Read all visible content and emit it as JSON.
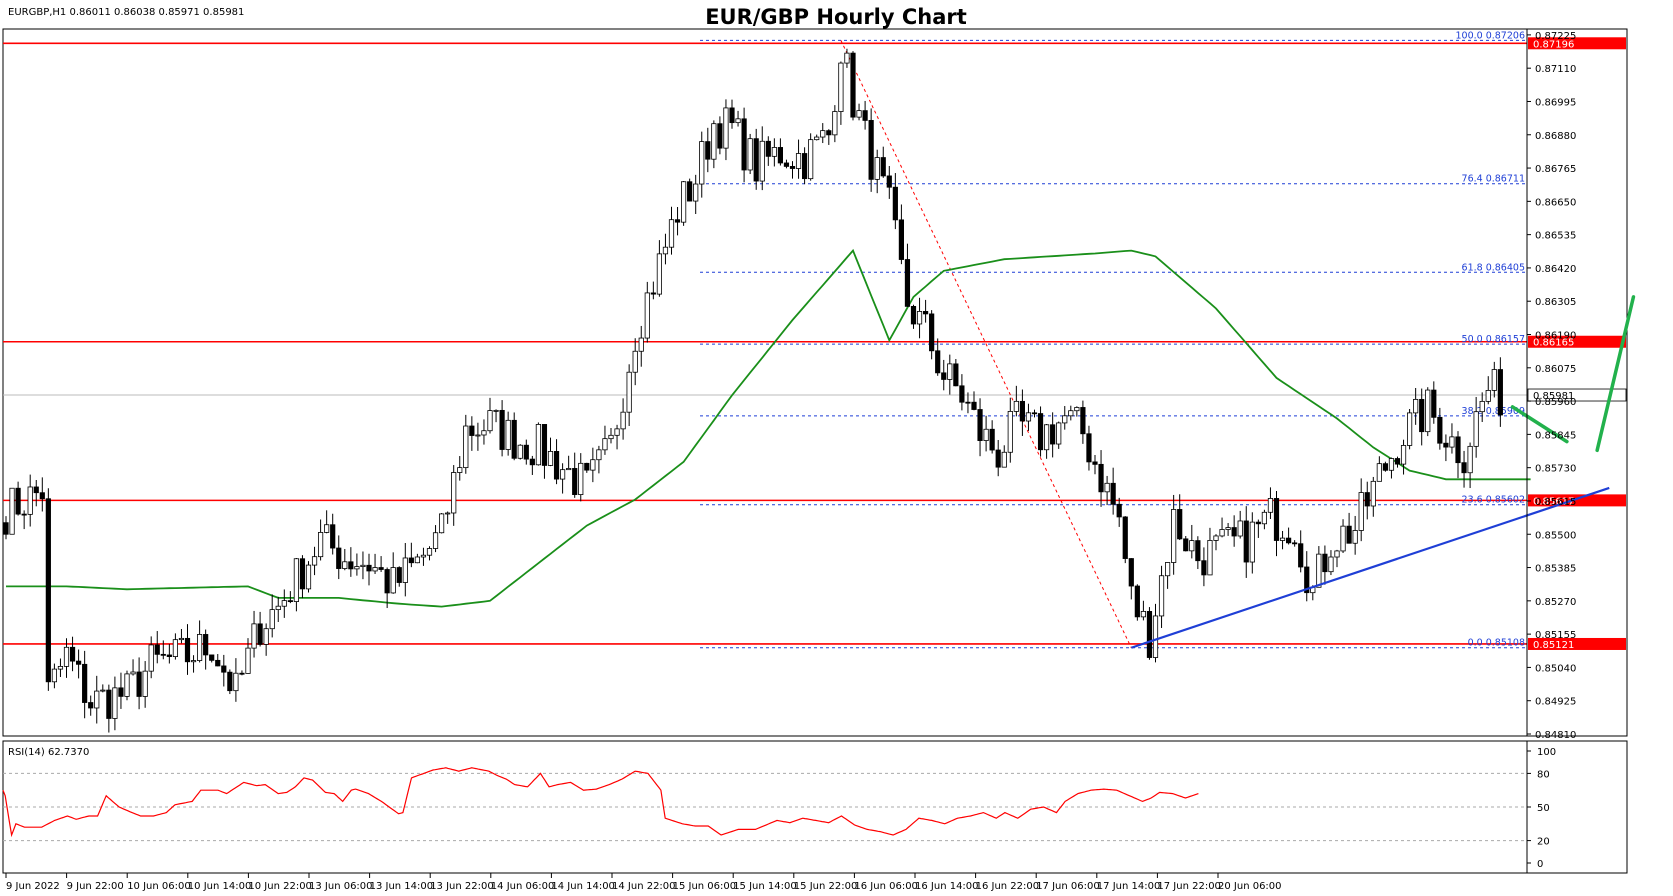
{
  "header": {
    "symbol_info": "EURGBP,H1  0.86011 0.86038 0.85971 0.85981",
    "title": "EUR/GBP Hourly Chart",
    "rsi_label": "RSI(14) 62.7370"
  },
  "colors": {
    "bull_candle": "#ffffff",
    "bear_candle": "#000000",
    "level_line": "#ff0000",
    "moving_average": "#1a8f1a",
    "trendline": "#1f3fd6",
    "fib_line": "#1f3fd6",
    "projection_arrow": "#22b14c",
    "rsi_line": "#ff0000"
  },
  "chart_data": [
    {
      "type": "candlestick",
      "symbol": "EURGBP",
      "timeframe": "H1",
      "ylim": [
        0.8481,
        0.87235
      ],
      "y_ticks": [
        "0.87225",
        "0.87110",
        "0.86995",
        "0.86880",
        "0.86765",
        "0.86650",
        "0.86535",
        "0.86420",
        "0.86305",
        "0.86190",
        "0.86075",
        "0.85960",
        "0.85845",
        "0.85730",
        "0.85615",
        "0.85500",
        "0.85385",
        "0.85270",
        "0.85155",
        "0.85040",
        "0.84925",
        "0.84810"
      ],
      "x_ticks": [
        "9 Jun 2022",
        "9 Jun 22:00",
        "10 Jun 06:00",
        "10 Jun 14:00",
        "10 Jun 22:00",
        "13 Jun 06:00",
        "13 Jun 14:00",
        "13 Jun 22:00",
        "14 Jun 06:00",
        "14 Jun 14:00",
        "14 Jun 22:00",
        "15 Jun 06:00",
        "15 Jun 14:00",
        "15 Jun 22:00",
        "16 Jun 06:00",
        "16 Jun 14:00",
        "16 Jun 22:00",
        "17 Jun 06:00",
        "17 Jun 14:00",
        "17 Jun 22:00",
        "20 Jun 06:00"
      ],
      "anchors": [
        [
          0,
          0.8558
        ],
        [
          6,
          0.8565
        ],
        [
          7,
          0.8495
        ],
        [
          10,
          0.8508
        ],
        [
          14,
          0.8492
        ],
        [
          20,
          0.8495
        ],
        [
          24,
          0.8505
        ],
        [
          30,
          0.8508
        ],
        [
          34,
          0.8512
        ],
        [
          38,
          0.8495
        ],
        [
          42,
          0.8519
        ],
        [
          45,
          0.8525
        ],
        [
          48,
          0.8535
        ],
        [
          52,
          0.8548
        ],
        [
          56,
          0.8542
        ],
        [
          60,
          0.854
        ],
        [
          64,
          0.8532
        ],
        [
          68,
          0.854
        ],
        [
          72,
          0.855
        ],
        [
          76,
          0.8586
        ],
        [
          80,
          0.8588
        ],
        [
          84,
          0.8583
        ],
        [
          88,
          0.858
        ],
        [
          92,
          0.8573
        ],
        [
          96,
          0.8566
        ],
        [
          100,
          0.858
        ],
        [
          104,
          0.862
        ],
        [
          108,
          0.8643
        ],
        [
          111,
          0.8662
        ],
        [
          114,
          0.8673
        ],
        [
          117,
          0.8692
        ],
        [
          120,
          0.869
        ],
        [
          124,
          0.8677
        ],
        [
          128,
          0.8682
        ],
        [
          132,
          0.868
        ],
        [
          136,
          0.8688
        ],
        [
          138,
          0.8719
        ],
        [
          140,
          0.87
        ],
        [
          143,
          0.868
        ],
        [
          146,
          0.8662
        ],
        [
          149,
          0.863
        ],
        [
          152,
          0.862
        ],
        [
          155,
          0.8605
        ],
        [
          158,
          0.8598
        ],
        [
          161,
          0.8585
        ],
        [
          164,
          0.8578
        ],
        [
          167,
          0.8588
        ],
        [
          171,
          0.8584
        ],
        [
          175,
          0.859
        ],
        [
          178,
          0.8585
        ],
        [
          181,
          0.857
        ],
        [
          184,
          0.8555
        ],
        [
          186,
          0.8528
        ],
        [
          189,
          0.8515
        ],
        [
          193,
          0.8555
        ],
        [
          197,
          0.8542
        ],
        [
          201,
          0.8545
        ],
        [
          205,
          0.8548
        ],
        [
          209,
          0.8556
        ],
        [
          213,
          0.8553
        ],
        [
          216,
          0.853
        ],
        [
          219,
          0.8548
        ],
        [
          223,
          0.8552
        ],
        [
          227,
          0.857
        ],
        [
          231,
          0.8585
        ],
        [
          235,
          0.8593
        ],
        [
          239,
          0.8582
        ],
        [
          241,
          0.8578
        ],
        [
          243,
          0.859
        ],
        [
          245,
          0.86
        ],
        [
          247,
          0.8598
        ]
      ],
      "levels": [
        0.87196,
        0.86165,
        0.85617,
        0.85121
      ],
      "level_tags": [
        "0.87196",
        "0.86165",
        "0.85617",
        "0.85121"
      ],
      "current_price": 0.85981,
      "current_price_tag": "0.85981",
      "fibonacci": [
        {
          "label": "100.0 0.87206",
          "price": 0.87206
        },
        {
          "label": "76.4 0.86711",
          "price": 0.86711
        },
        {
          "label": "61.8 0.86405",
          "price": 0.86405
        },
        {
          "label": "50.0 0.86157",
          "price": 0.86157
        },
        {
          "label": "38.2 0.85909",
          "price": 0.85909
        },
        {
          "label": "23.6 0.85602",
          "price": 0.85602
        },
        {
          "label": "0.0 0.85108",
          "price": 0.85108
        }
      ],
      "fib_swing": {
        "high_bar": 138,
        "high": 0.87206,
        "low_bar": 186,
        "low": 0.85108
      },
      "moving_average": [
        [
          0,
          0.8532
        ],
        [
          10,
          0.8532
        ],
        [
          20,
          0.8531
        ],
        [
          40,
          0.8532
        ],
        [
          45,
          0.8528
        ],
        [
          55,
          0.8528
        ],
        [
          65,
          0.8526
        ],
        [
          72,
          0.8525
        ],
        [
          80,
          0.8527
        ],
        [
          88,
          0.854
        ],
        [
          96,
          0.8553
        ],
        [
          104,
          0.8562
        ],
        [
          112,
          0.8575
        ],
        [
          120,
          0.8598
        ],
        [
          130,
          0.8624
        ],
        [
          140,
          0.8648
        ],
        [
          146,
          0.8617
        ],
        [
          150,
          0.8632
        ],
        [
          155,
          0.8641
        ],
        [
          165,
          0.8645
        ],
        [
          180,
          0.8647
        ],
        [
          186,
          0.8648
        ],
        [
          190,
          0.8646
        ],
        [
          200,
          0.8628
        ],
        [
          210,
          0.8604
        ],
        [
          220,
          0.859
        ],
        [
          226,
          0.858
        ],
        [
          232,
          0.8572
        ],
        [
          238,
          0.8569
        ],
        [
          252,
          0.8569
        ]
      ],
      "trendline": [
        [
          186,
          0.85108
        ],
        [
          265,
          0.8566
        ]
      ],
      "projection_arrows": [
        [
          [
            249,
            0.8594
          ],
          [
            258,
            0.8582
          ]
        ],
        [
          [
            263,
            0.8579
          ],
          [
            269,
            0.8632
          ]
        ]
      ]
    },
    {
      "type": "line",
      "name": "RSI(14)",
      "ylim": [
        0,
        100
      ],
      "y_ticks": [
        "100",
        "80",
        "50",
        "20",
        "0"
      ],
      "levels": [
        80,
        50,
        20
      ],
      "anchors": [
        [
          0,
          65
        ],
        [
          1,
          60
        ],
        [
          4,
          25
        ],
        [
          6,
          35
        ],
        [
          10,
          32
        ],
        [
          18,
          32
        ],
        [
          24,
          38
        ],
        [
          30,
          42
        ],
        [
          34,
          39
        ],
        [
          40,
          42
        ],
        [
          44,
          42
        ],
        [
          48,
          60
        ],
        [
          54,
          50
        ],
        [
          60,
          45
        ],
        [
          64,
          42
        ],
        [
          70,
          42
        ],
        [
          76,
          45
        ],
        [
          80,
          52
        ],
        [
          88,
          55
        ],
        [
          92,
          65
        ],
        [
          100,
          65
        ],
        [
          104,
          62
        ],
        [
          112,
          72
        ],
        [
          118,
          69
        ],
        [
          122,
          70
        ],
        [
          128,
          62
        ],
        [
          132,
          63
        ],
        [
          136,
          68
        ],
        [
          140,
          76
        ],
        [
          144,
          74
        ],
        [
          150,
          63
        ],
        [
          154,
          62
        ],
        [
          158,
          55
        ],
        [
          162,
          65
        ],
        [
          164,
          66
        ],
        [
          170,
          62
        ],
        [
          176,
          55
        ],
        [
          184,
          44
        ],
        [
          186,
          45
        ],
        [
          190,
          76
        ],
        [
          200,
          83
        ],
        [
          206,
          85
        ],
        [
          212,
          82
        ],
        [
          218,
          85
        ],
        [
          226,
          82
        ],
        [
          230,
          78
        ],
        [
          234,
          75
        ],
        [
          238,
          70
        ],
        [
          244,
          68
        ],
        [
          250,
          80
        ],
        [
          254,
          68
        ],
        [
          258,
          70
        ],
        [
          264,
          72
        ],
        [
          270,
          65
        ],
        [
          276,
          66
        ],
        [
          282,
          70
        ],
        [
          288,
          75
        ],
        [
          294,
          82
        ],
        [
          300,
          80
        ],
        [
          306,
          65
        ],
        [
          308,
          40
        ],
        [
          316,
          35
        ],
        [
          322,
          33
        ],
        [
          328,
          33
        ],
        [
          334,
          25
        ],
        [
          342,
          30
        ],
        [
          350,
          30
        ],
        [
          360,
          38
        ],
        [
          366,
          36
        ],
        [
          372,
          40
        ],
        [
          378,
          38
        ],
        [
          384,
          36
        ],
        [
          390,
          42
        ],
        [
          396,
          34
        ],
        [
          402,
          30
        ],
        [
          408,
          28
        ],
        [
          414,
          25
        ],
        [
          420,
          30
        ],
        [
          426,
          40
        ],
        [
          432,
          38
        ],
        [
          438,
          35
        ],
        [
          444,
          40
        ],
        [
          450,
          42
        ],
        [
          456,
          45
        ],
        [
          462,
          40
        ],
        [
          466,
          45
        ],
        [
          472,
          40
        ],
        [
          478,
          48
        ],
        [
          484,
          50
        ],
        [
          490,
          45
        ],
        [
          494,
          55
        ],
        [
          500,
          62
        ],
        [
          506,
          65
        ],
        [
          512,
          66
        ],
        [
          518,
          65
        ],
        [
          524,
          60
        ],
        [
          530,
          55
        ],
        [
          534,
          58
        ],
        [
          538,
          63
        ],
        [
          544,
          62
        ],
        [
          550,
          58
        ],
        [
          556,
          62
        ]
      ]
    }
  ]
}
